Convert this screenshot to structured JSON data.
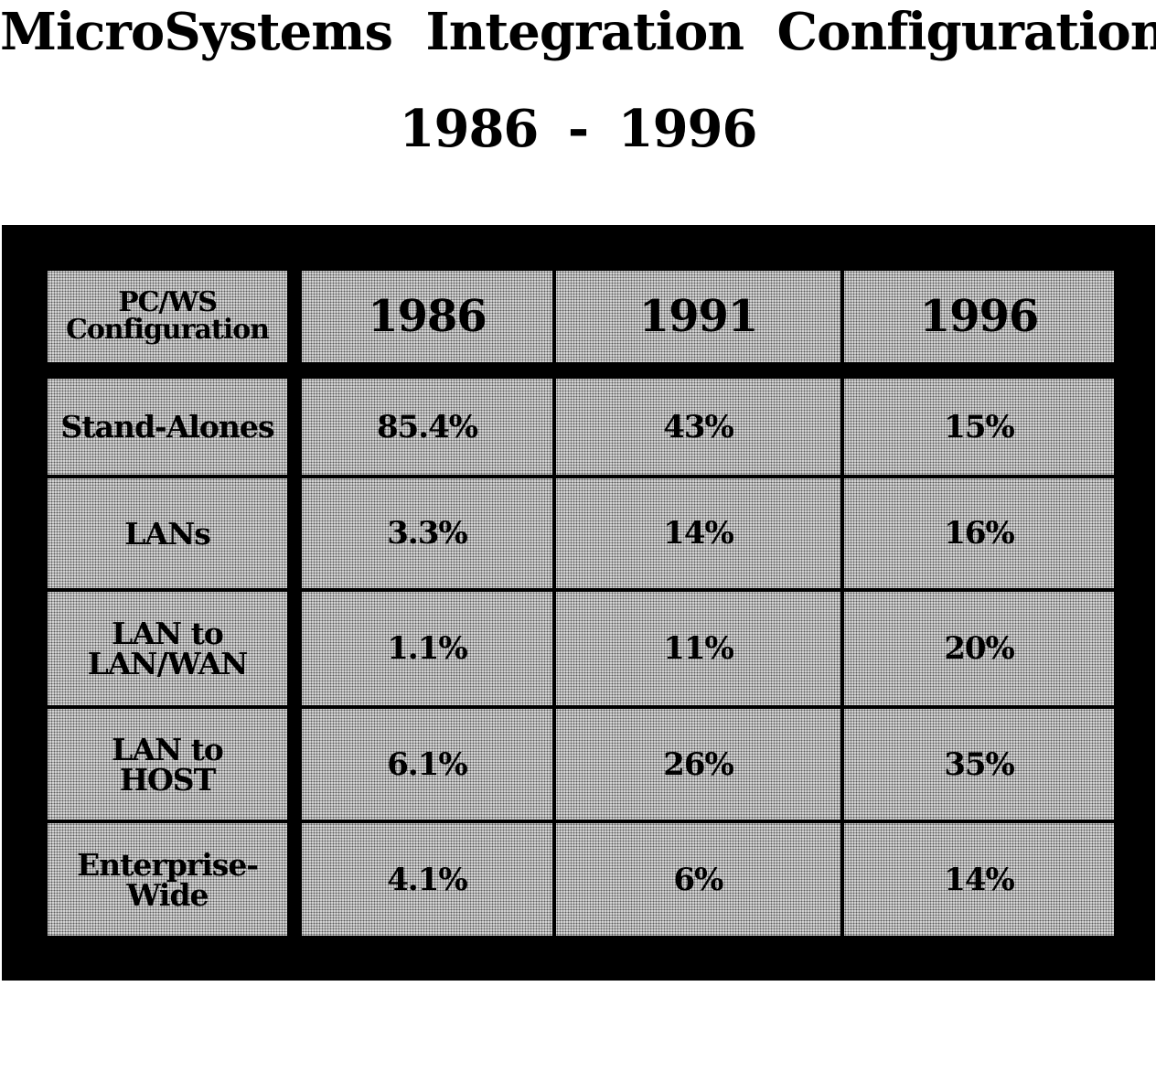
{
  "title": "MicroSystems Integration Configuration",
  "subtitle": "1986 - 1996",
  "chart_data": {
    "type": "table",
    "title": "MicroSystems Integration Configuration",
    "subtitle": "1986 - 1996",
    "header_label": "PC/WS Configuration",
    "columns": [
      "1986",
      "1991",
      "1996"
    ],
    "rows": [
      {
        "label": "Stand-Alones",
        "values": [
          "85.4%",
          "43%",
          "15%"
        ]
      },
      {
        "label": "LANs",
        "values": [
          "3.3%",
          "14%",
          "16%"
        ]
      },
      {
        "label": "LAN to LAN/WAN",
        "values": [
          "1.1%",
          "11%",
          "20%"
        ]
      },
      {
        "label": "LAN to HOST",
        "values": [
          "6.1%",
          "26%",
          "35%"
        ]
      },
      {
        "label": "Enterprise-Wide",
        "values": [
          "4.1%",
          "6%",
          "14%"
        ]
      }
    ]
  }
}
